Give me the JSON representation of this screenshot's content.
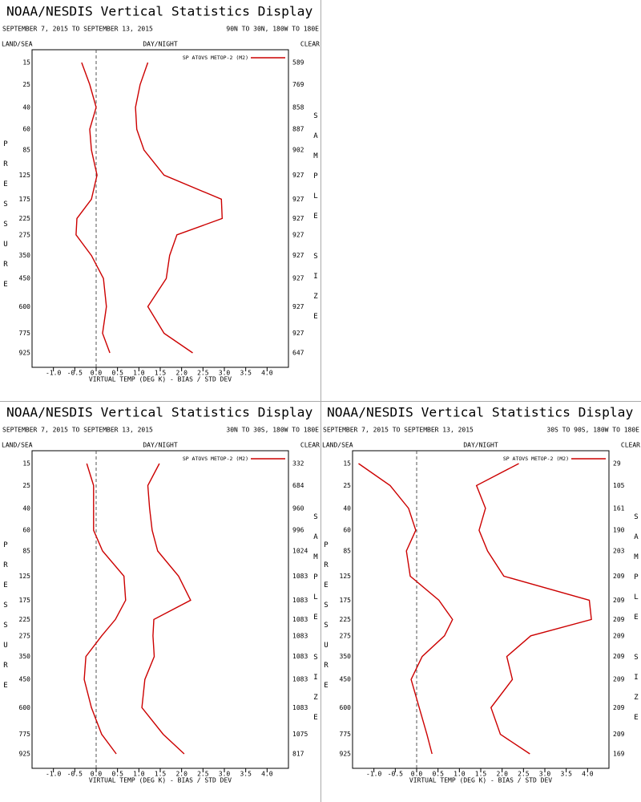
{
  "chart_data": [
    {
      "type": "line",
      "title": "NOAA/NESDIS Vertical Statistics Display",
      "date_range": "SEPTEMBER 7, 2015 TO SEPTEMBER 13, 2015",
      "region": "90N TO 30N, 180W TO 180E",
      "land_sea_label": "LAND/SEA",
      "day_night_label": "DAY/NIGHT",
      "clear_label": "CLEAR",
      "y_label": "PRESSURE",
      "y2_label": "SAMPLE SIZE",
      "x_label": "VIRTUAL TEMP (DEG K) - BIAS / STD DEV",
      "xlim": [
        -1.5,
        4.5
      ],
      "xticks": [
        {
          "value": -1,
          "label": "-1.0"
        },
        -0.5,
        {
          "value": 0,
          "label": "0.0"
        },
        0.5,
        {
          "value": 1,
          "label": "1.0"
        },
        1.5,
        {
          "value": 2,
          "label": "2.0"
        },
        2.5,
        {
          "value": 3,
          "label": "3.0"
        },
        3.5,
        {
          "value": 4,
          "label": "4.0"
        }
      ],
      "categories": [
        15,
        25,
        40,
        60,
        85,
        125,
        175,
        225,
        275,
        350,
        450,
        600,
        775,
        925
      ],
      "sample_sizes": [
        589,
        769,
        858,
        887,
        902,
        927,
        927,
        927,
        927,
        927,
        927,
        927,
        927,
        647
      ],
      "series": [
        {
          "name": "SP ATOVS METOP-2 (M2)",
          "color": "#cc0000",
          "values": [
            -0.34,
            -0.15,
            0.0,
            -0.15,
            -0.11,
            0.02,
            -0.11,
            -0.45,
            -0.47,
            -0.11,
            0.17,
            0.24,
            0.15,
            0.32
          ],
          "std_dev": [
            1.21,
            1.03,
            0.92,
            0.95,
            1.12,
            1.59,
            2.93,
            2.95,
            1.89,
            1.72,
            1.64,
            1.21,
            1.59,
            2.26
          ]
        }
      ]
    },
    {
      "type": "line",
      "title": "NOAA/NESDIS Vertical Statistics Display",
      "date_range": "SEPTEMBER 7, 2015 TO SEPTEMBER 13, 2015",
      "region": "30N TO 30S, 180W TO 180E",
      "land_sea_label": "LAND/SEA",
      "day_night_label": "DAY/NIGHT",
      "clear_label": "CLEAR",
      "y_label": "PRESSURE",
      "y2_label": "SAMPLE SIZE",
      "x_label": "VIRTUAL TEMP (DEG K) - BIAS / STD DEV",
      "xlim": [
        -1.5,
        4.5
      ],
      "xticks": [
        {
          "value": -1,
          "label": "-1.0"
        },
        -0.5,
        {
          "value": 0,
          "label": "0.0"
        },
        0.5,
        {
          "value": 1,
          "label": "1.0"
        },
        1.5,
        {
          "value": 2,
          "label": "2.0"
        },
        2.5,
        {
          "value": 3,
          "label": "3.0"
        },
        3.5,
        {
          "value": 4,
          "label": "4.0"
        }
      ],
      "categories": [
        15,
        25,
        40,
        60,
        85,
        125,
        175,
        225,
        275,
        350,
        450,
        600,
        775,
        925
      ],
      "sample_sizes": [
        332,
        684,
        960,
        996,
        1024,
        1083,
        1083,
        1083,
        1083,
        1083,
        1083,
        1083,
        1075,
        817
      ],
      "series": [
        {
          "name": "SP ATOVS METOP-2 (M2)",
          "color": "#cc0000",
          "values": [
            -0.22,
            -0.06,
            -0.06,
            -0.06,
            0.15,
            0.65,
            0.69,
            0.45,
            0.13,
            -0.24,
            -0.28,
            -0.11,
            0.13,
            0.47
          ],
          "std_dev": [
            1.48,
            1.21,
            1.25,
            1.31,
            1.44,
            1.93,
            2.21,
            1.35,
            1.33,
            1.36,
            1.14,
            1.07,
            1.57,
            2.06
          ]
        }
      ]
    },
    {
      "type": "line",
      "title": "NOAA/NESDIS Vertical Statistics Display",
      "date_range": "SEPTEMBER 7, 2015 TO SEPTEMBER 13, 2015",
      "region": "30S TO 90S, 180W TO 180E",
      "land_sea_label": "LAND/SEA",
      "day_night_label": "DAY/NIGHT",
      "clear_label": "CLEAR",
      "y_label": "PRESSURE",
      "y2_label": "SAMPLE SIZE",
      "x_label": "VIRTUAL TEMP (DEG K) - BIAS / STD DEV",
      "xlim": [
        -1.5,
        4.5
      ],
      "xticks": [
        {
          "value": -1,
          "label": "-1.0"
        },
        -0.5,
        {
          "value": 0,
          "label": "0.0"
        },
        0.5,
        {
          "value": 1,
          "label": "1.0"
        },
        1.5,
        {
          "value": 2,
          "label": "2.0"
        },
        2.5,
        {
          "value": 3,
          "label": "3.0"
        },
        3.5,
        {
          "value": 4,
          "label": "4.0"
        }
      ],
      "categories": [
        15,
        25,
        40,
        60,
        85,
        125,
        175,
        225,
        275,
        350,
        450,
        600,
        775,
        925
      ],
      "sample_sizes": [
        29,
        105,
        161,
        190,
        203,
        209,
        209,
        209,
        209,
        209,
        209,
        209,
        209,
        169
      ],
      "series": [
        {
          "name": "SP ATOVS METOP-2 (M2)",
          "color": "#cc0000",
          "values": [
            -1.36,
            -0.62,
            -0.19,
            -0.02,
            -0.24,
            -0.15,
            0.52,
            0.84,
            0.65,
            0.13,
            -0.13,
            0.06,
            0.24,
            0.36
          ],
          "std_dev": [
            2.39,
            1.4,
            1.61,
            1.46,
            1.66,
            2.04,
            4.04,
            4.09,
            2.67,
            2.11,
            2.24,
            1.74,
            1.96,
            2.65
          ]
        }
      ]
    }
  ]
}
